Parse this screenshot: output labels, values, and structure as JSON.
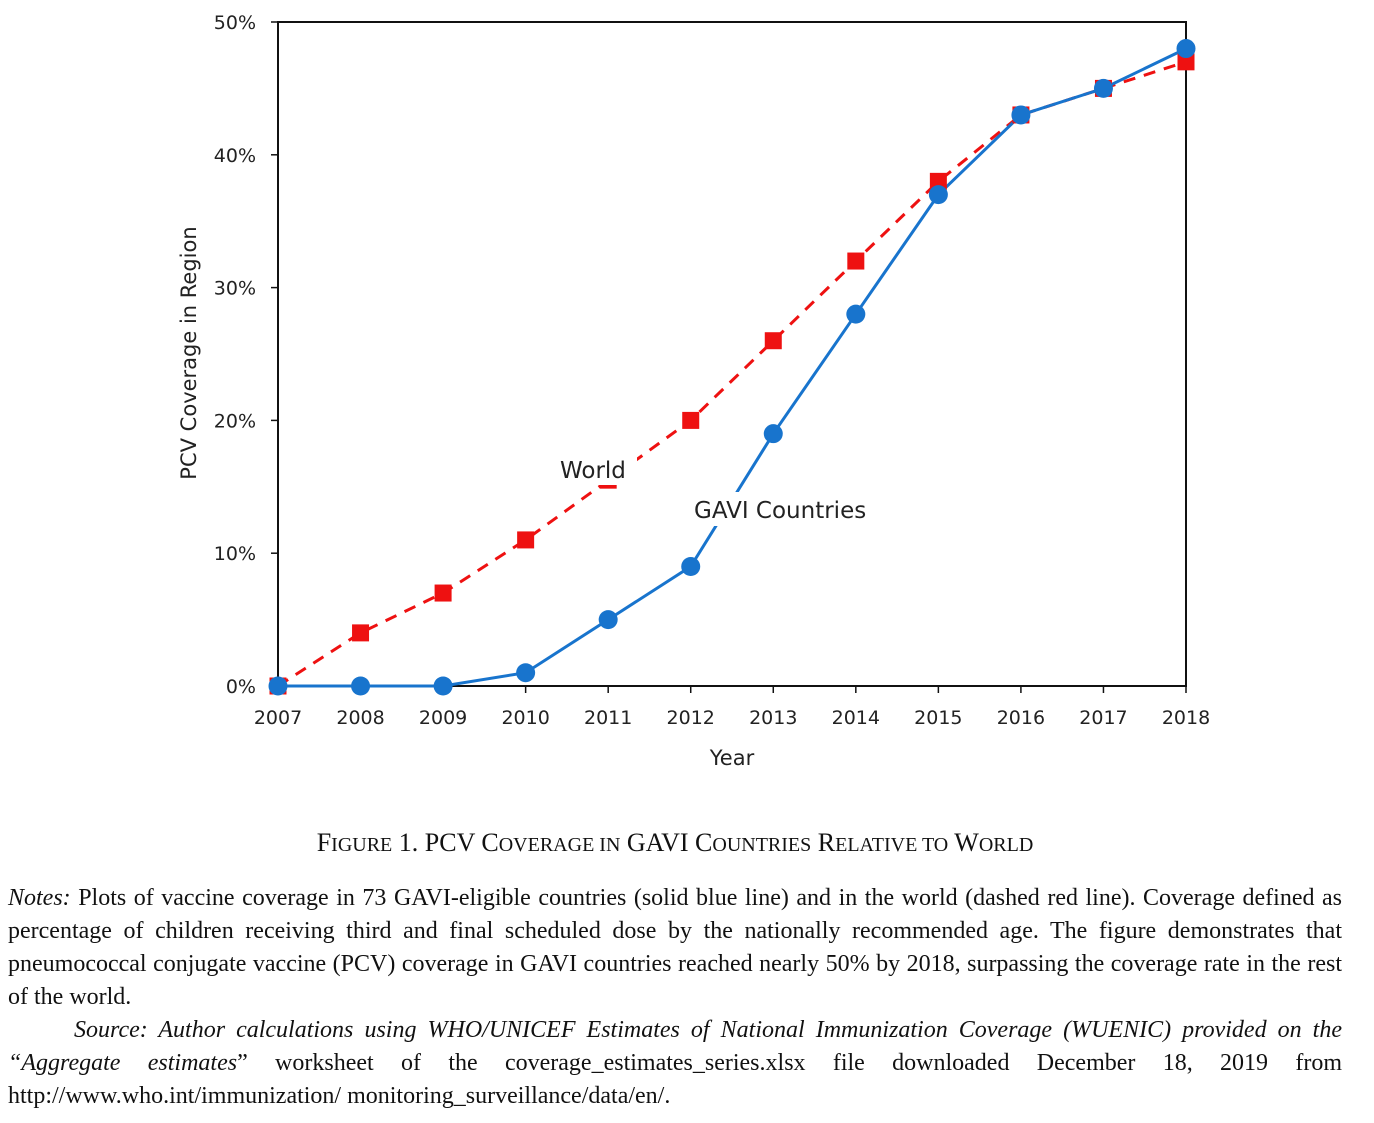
{
  "chart_data": {
    "type": "line",
    "title": "",
    "xlabel": "Year",
    "ylabel": "PCV Coverage in Region",
    "x": [
      2007,
      2008,
      2009,
      2010,
      2011,
      2012,
      2013,
      2014,
      2015,
      2016,
      2017,
      2018
    ],
    "x_tick_labels": [
      "2007",
      "2008",
      "2009",
      "2010",
      "2011",
      "2012",
      "2013",
      "2014",
      "2015",
      "2016",
      "2017",
      "2018"
    ],
    "ylim": [
      0,
      50
    ],
    "y_ticks": [
      0,
      10,
      20,
      30,
      40,
      50
    ],
    "y_tick_labels": [
      "0%",
      "10%",
      "20%",
      "30%",
      "40%",
      "50%"
    ],
    "grid": false,
    "series": [
      {
        "name": "World",
        "label": "World",
        "color": "#ee1111",
        "line_style": "dashed",
        "marker": "square",
        "values": [
          0,
          4,
          7,
          11,
          15.5,
          20,
          26,
          32,
          38,
          43,
          45,
          47
        ]
      },
      {
        "name": "GAVI Countries",
        "label": "GAVI Countries",
        "color": "#1874cd",
        "line_style": "solid",
        "marker": "circle",
        "values": [
          0,
          0,
          0,
          1,
          5,
          9,
          19,
          28,
          37,
          43,
          45,
          48
        ]
      }
    ]
  },
  "caption": {
    "fig": "F",
    "fig_rest": "IGURE",
    "number": " 1. PCV ",
    "c1": "C",
    "c1_rest": "OVERAGE IN",
    "gavi": " GAVI ",
    "c2": "C",
    "c2_rest": "OUNTRIES",
    "r": " R",
    "r_rest": "ELATIVE TO",
    "w": " W",
    "w_rest": "ORLD"
  },
  "notes": {
    "label": "Notes:",
    "text": " Plots of vaccine coverage in 73 GAVI-eligible countries (solid blue line) and in the world (dashed red line). Coverage defined as percentage of children receiving third and final scheduled dose by the nationally recommended age. The figure demonstrates that pneumococcal conjugate vaccine (PCV) coverage in GAVI countries reached nearly 50% by 2018, surpassing the coverage rate in the rest of the world."
  },
  "source": {
    "italic": "Source: Author calculations using WHO/UNICEF Estimates of National Immunization Coverage (WUENIC) provided on the “Aggregate estimates",
    "plain": "” worksheet of the coverage_estimates_series.xlsx file downloaded December 18, 2019 from http://www.who.int/immunization/ monitoring_surveillance/data/en/."
  }
}
